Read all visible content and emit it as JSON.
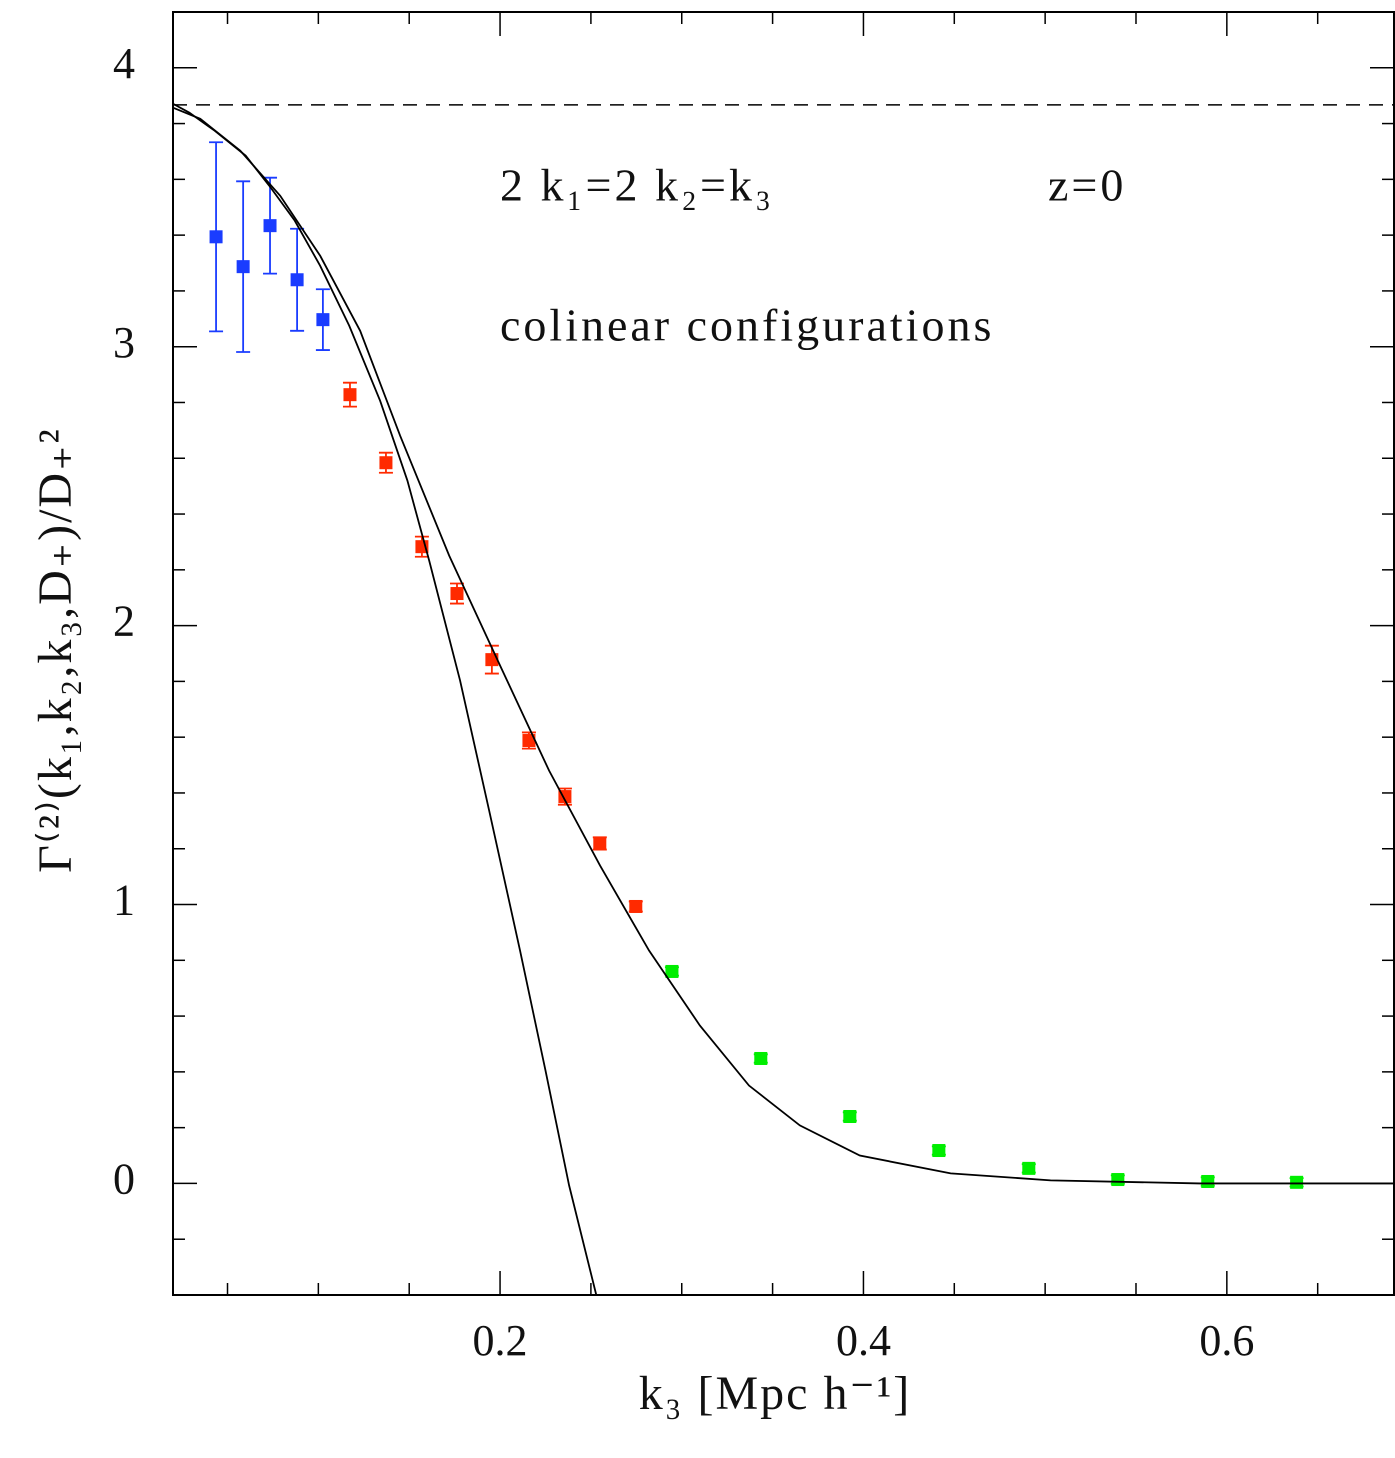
{
  "chart_data": {
    "type": "scatter",
    "annotations": [
      "2 k₁=2 k₂=k₃",
      "z=0",
      "colinear configurations"
    ],
    "xlabel": "k₃ [Mpc h⁻¹]",
    "ylabel": "Γ⁽²⁾(k₁,k₂,k₃,D₊)/D₊²",
    "xlim": [
      0.02,
      0.692
    ],
    "ylim": [
      -0.4,
      4.2
    ],
    "xticks": [
      0.2,
      0.4,
      0.6
    ],
    "yticks": [
      0,
      1,
      2,
      3,
      4
    ],
    "xminorticks": [
      0.05,
      0.1,
      0.15,
      0.25,
      0.3,
      0.35,
      0.45,
      0.5,
      0.55,
      0.65
    ],
    "yminorticks": [
      -0.2,
      0.2,
      0.4,
      0.6,
      0.8,
      1.2,
      1.4,
      1.6,
      1.8,
      2.2,
      2.4,
      2.6,
      2.8,
      3.2,
      3.4,
      3.6,
      3.8
    ],
    "hline": {
      "value": 3.867,
      "style": "dashed",
      "color": "#000000"
    },
    "series": [
      {
        "kind": "points",
        "color": "#1a3cff",
        "x": [
          0.0437,
          0.0586,
          0.0734,
          0.0883,
          0.1025
        ],
        "values": [
          3.394,
          3.287,
          3.434,
          3.24,
          3.097
        ],
        "errors": [
          0.339,
          0.306,
          0.172,
          0.183,
          0.109
        ]
      },
      {
        "kind": "points",
        "color": "#ff2a00",
        "x": [
          0.1174,
          0.1372,
          0.157,
          0.1763,
          0.1955,
          0.2159,
          0.2357,
          0.2549,
          0.2747
        ],
        "values": [
          2.828,
          2.584,
          2.283,
          2.115,
          1.878,
          1.588,
          1.387,
          1.219,
          0.993
        ],
        "errors": [
          0.043,
          0.036,
          0.036,
          0.036,
          0.05,
          0.029,
          0.029,
          0.022,
          0.018
        ]
      },
      {
        "kind": "points",
        "color": "#00ee00",
        "x": [
          0.2946,
          0.3435,
          0.3925,
          0.4415,
          0.491,
          0.54,
          0.5895,
          0.6384
        ],
        "values": [
          0.76,
          0.448,
          0.24,
          0.118,
          0.054,
          0.014,
          0.007,
          0.004
        ],
        "errors": [
          0.015,
          0.015,
          0.015,
          0.015,
          0.015,
          0.015,
          0.015,
          0.015
        ]
      },
      {
        "kind": "line",
        "color": "#000000",
        "x": [
          0.02,
          0.029,
          0.043,
          0.06,
          0.073,
          0.087,
          0.101,
          0.117,
          0.134,
          0.149,
          0.161,
          0.178,
          0.194,
          0.211,
          0.225,
          0.238,
          0.253
        ],
        "values": [
          3.871,
          3.839,
          3.774,
          3.685,
          3.577,
          3.452,
          3.29,
          3.075,
          2.806,
          2.52,
          2.233,
          1.803,
          1.337,
          0.835,
          0.405,
          -0.007,
          -0.401
        ]
      },
      {
        "kind": "line",
        "color": "#000000",
        "x": [
          0.02,
          0.035,
          0.057,
          0.079,
          0.101,
          0.123,
          0.145,
          0.172,
          0.2,
          0.227,
          0.255,
          0.282,
          0.31,
          0.337,
          0.365,
          0.398,
          0.448,
          0.503,
          0.585,
          0.692
        ],
        "values": [
          3.857,
          3.817,
          3.703,
          3.541,
          3.326,
          3.057,
          2.681,
          2.251,
          1.857,
          1.48,
          1.14,
          0.835,
          0.566,
          0.351,
          0.208,
          0.1,
          0.036,
          0.011,
          0.0,
          0.0
        ]
      }
    ]
  }
}
